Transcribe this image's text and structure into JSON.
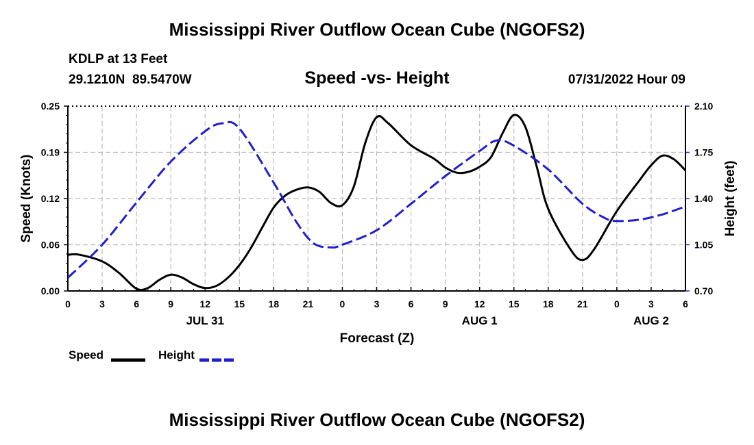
{
  "header": {
    "title": "Mississippi River Outflow Ocean Cube (NGOFS2)",
    "station": "KDLP at 13 Feet",
    "coordinates": "29.1210N  89.5470W",
    "subtitle": "Speed -vs- Height",
    "datetime": "07/31/2022 Hour 09"
  },
  "footer": {
    "title": "Mississippi River Outflow Ocean Cube (NGOFS2)"
  },
  "legend": {
    "speed_label": "Speed",
    "height_label": "Height"
  },
  "colors": {
    "speed": "#000000",
    "height": "#1f1fd0",
    "grid": "#bbbbbb"
  },
  "chart_data": {
    "type": "line",
    "xlabel": "Forecast (Z)",
    "x_hours": [
      0,
      54
    ],
    "x_ticks": [
      {
        "h": 0,
        "label": "0"
      },
      {
        "h": 3,
        "label": "3"
      },
      {
        "h": 6,
        "label": "6"
      },
      {
        "h": 9,
        "label": "9"
      },
      {
        "h": 12,
        "label": "12"
      },
      {
        "h": 15,
        "label": "15"
      },
      {
        "h": 18,
        "label": "18"
      },
      {
        "h": 21,
        "label": "21"
      },
      {
        "h": 24,
        "label": "0"
      },
      {
        "h": 27,
        "label": "3"
      },
      {
        "h": 30,
        "label": "6"
      },
      {
        "h": 33,
        "label": "9"
      },
      {
        "h": 36,
        "label": "12"
      },
      {
        "h": 39,
        "label": "15"
      },
      {
        "h": 42,
        "label": "18"
      },
      {
        "h": 45,
        "label": "21"
      },
      {
        "h": 48,
        "label": "0"
      },
      {
        "h": 51,
        "label": "3"
      },
      {
        "h": 54,
        "label": "6"
      }
    ],
    "date_labels": [
      {
        "h": 12,
        "label": "JUL 31"
      },
      {
        "h": 36,
        "label": "AUG 1"
      },
      {
        "h": 51,
        "label": "AUG 2"
      }
    ],
    "left_axis": {
      "label": "Speed (Knots)",
      "ylim": [
        0,
        0.25
      ],
      "ticks": [
        "0.00",
        "0.06",
        "0.12",
        "0.19",
        "0.25"
      ]
    },
    "right_axis": {
      "label": "Height (feet)",
      "ylim": [
        0.7,
        2.1
      ],
      "ticks": [
        "0.70",
        "1.05",
        "1.40",
        "1.75",
        "2.10"
      ]
    },
    "series": [
      {
        "name": "Speed",
        "axis": "left",
        "style": "solid",
        "points": [
          [
            0,
            0.049
          ],
          [
            1,
            0.049
          ],
          [
            3,
            0.04
          ],
          [
            4.5,
            0.024
          ],
          [
            6,
            0.003
          ],
          [
            7,
            0.004
          ],
          [
            8,
            0.015
          ],
          [
            9,
            0.022
          ],
          [
            10,
            0.018
          ],
          [
            11,
            0.009
          ],
          [
            12,
            0.004
          ],
          [
            13,
            0.007
          ],
          [
            14,
            0.018
          ],
          [
            15,
            0.035
          ],
          [
            16,
            0.058
          ],
          [
            17,
            0.086
          ],
          [
            18,
            0.113
          ],
          [
            19,
            0.129
          ],
          [
            20,
            0.137
          ],
          [
            21,
            0.14
          ],
          [
            22,
            0.134
          ],
          [
            23,
            0.119
          ],
          [
            24,
            0.116
          ],
          [
            25,
            0.141
          ],
          [
            26,
            0.2
          ],
          [
            27,
            0.235
          ],
          [
            28,
            0.227
          ],
          [
            30,
            0.197
          ],
          [
            32,
            0.179
          ],
          [
            33,
            0.167
          ],
          [
            34,
            0.16
          ],
          [
            35,
            0.161
          ],
          [
            36,
            0.168
          ],
          [
            37,
            0.181
          ],
          [
            38,
            0.213
          ],
          [
            39,
            0.238
          ],
          [
            40,
            0.222
          ],
          [
            41,
            0.168
          ],
          [
            42,
            0.111
          ],
          [
            44,
            0.055
          ],
          [
            45,
            0.042
          ],
          [
            46,
            0.056
          ],
          [
            48,
            0.108
          ],
          [
            50,
            0.15
          ],
          [
            51,
            0.17
          ],
          [
            52,
            0.183
          ],
          [
            53,
            0.178
          ],
          [
            54,
            0.163
          ]
        ]
      },
      {
        "name": "Height",
        "axis": "right",
        "style": "dashed",
        "points": [
          [
            0,
            0.8
          ],
          [
            3,
            1.05
          ],
          [
            6,
            1.37
          ],
          [
            9,
            1.68
          ],
          [
            12,
            1.91
          ],
          [
            13.5,
            1.97
          ],
          [
            15,
            1.93
          ],
          [
            18,
            1.52
          ],
          [
            20,
            1.22
          ],
          [
            21.5,
            1.06
          ],
          [
            23,
            1.03
          ],
          [
            24,
            1.05
          ],
          [
            27,
            1.16
          ],
          [
            30,
            1.36
          ],
          [
            33,
            1.57
          ],
          [
            36,
            1.76
          ],
          [
            37.5,
            1.84
          ],
          [
            39,
            1.8
          ],
          [
            42,
            1.62
          ],
          [
            45,
            1.36
          ],
          [
            47,
            1.25
          ],
          [
            48,
            1.23
          ],
          [
            50,
            1.24
          ],
          [
            52,
            1.28
          ],
          [
            54,
            1.34
          ]
        ]
      }
    ]
  }
}
